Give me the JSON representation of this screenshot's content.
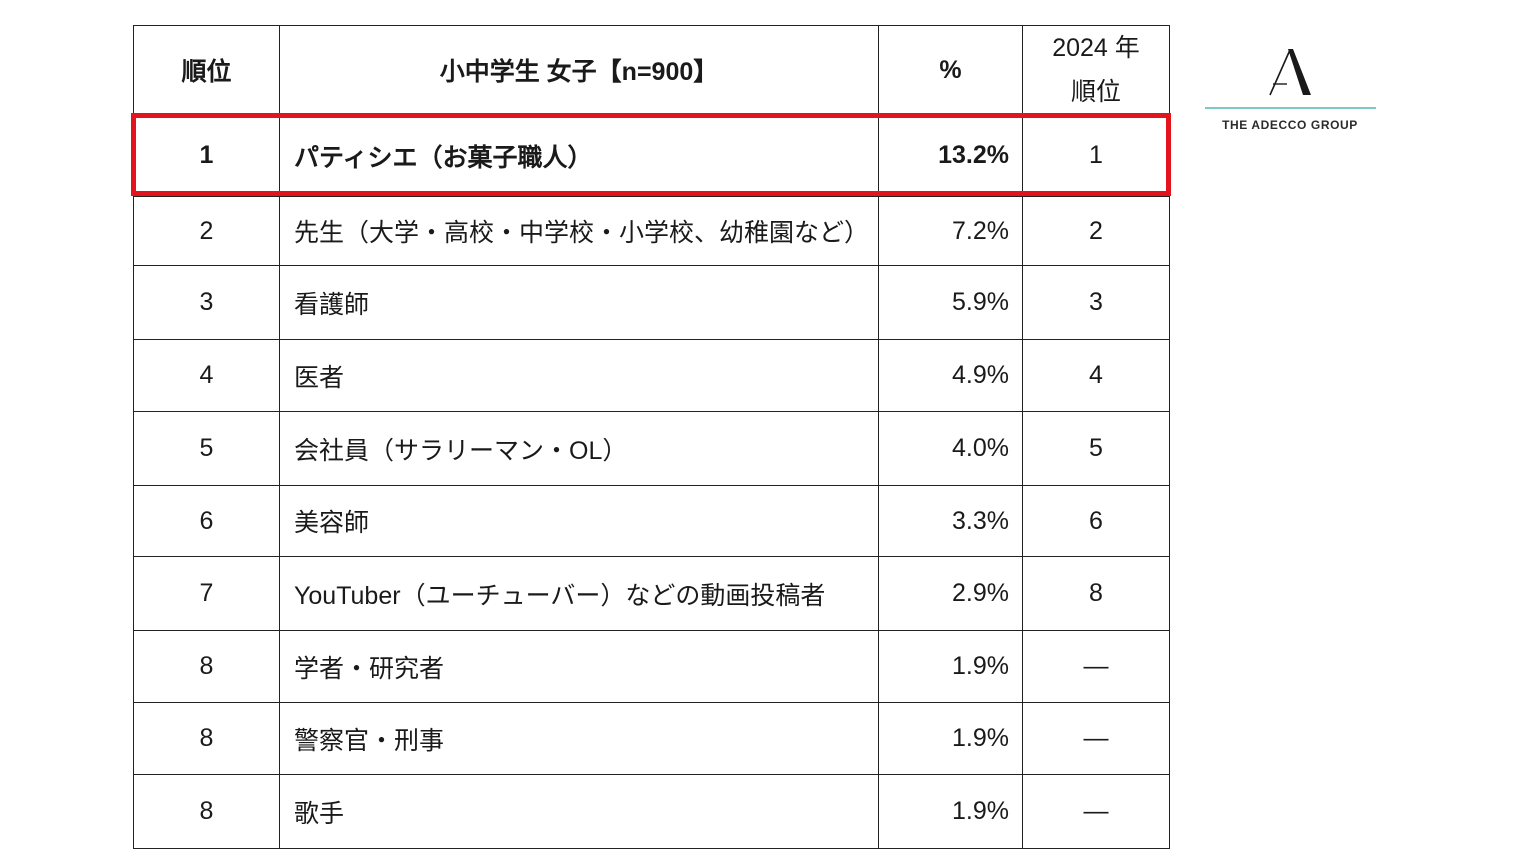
{
  "colors": {
    "highlight_border": "#e3141b",
    "logo_line": "#7fc8c8",
    "table_border": "#222222"
  },
  "table": {
    "headers": {
      "rank": "順位",
      "job": "小中学生 女子【n=900】",
      "percent": "%",
      "prev_rank_line1": "2024 年",
      "prev_rank_line2": "順位"
    },
    "rows": [
      {
        "rank": "1",
        "job": "パティシエ（お菓子職人）",
        "percent": "13.2%",
        "prev_rank": "1",
        "highlight": true
      },
      {
        "rank": "2",
        "job": "先生（大学・高校・中学校・小学校、幼稚園など）",
        "percent": "7.2%",
        "prev_rank": "2",
        "highlight": false
      },
      {
        "rank": "3",
        "job": "看護師",
        "percent": "5.9%",
        "prev_rank": "3",
        "highlight": false
      },
      {
        "rank": "4",
        "job": "医者",
        "percent": "4.9%",
        "prev_rank": "4",
        "highlight": false
      },
      {
        "rank": "5",
        "job": "会社員（サラリーマン・OL）",
        "percent": "4.0%",
        "prev_rank": "5",
        "highlight": false
      },
      {
        "rank": "6",
        "job": "美容師",
        "percent": "3.3%",
        "prev_rank": "6",
        "highlight": false
      },
      {
        "rank": "7",
        "job": "YouTuber（ユーチューバー）などの動画投稿者",
        "percent": "2.9%",
        "prev_rank": "8",
        "highlight": false
      },
      {
        "rank": "8",
        "job": "学者・研究者",
        "percent": "1.9%",
        "prev_rank": "―",
        "highlight": false
      },
      {
        "rank": "8",
        "job": "警察官・刑事",
        "percent": "1.9%",
        "prev_rank": "―",
        "highlight": false
      },
      {
        "rank": "8",
        "job": "歌手",
        "percent": "1.9%",
        "prev_rank": "―",
        "highlight": false
      }
    ]
  },
  "logo": {
    "icon": "adecco-a-logo-icon",
    "text": "THE ADECCO GROUP"
  }
}
